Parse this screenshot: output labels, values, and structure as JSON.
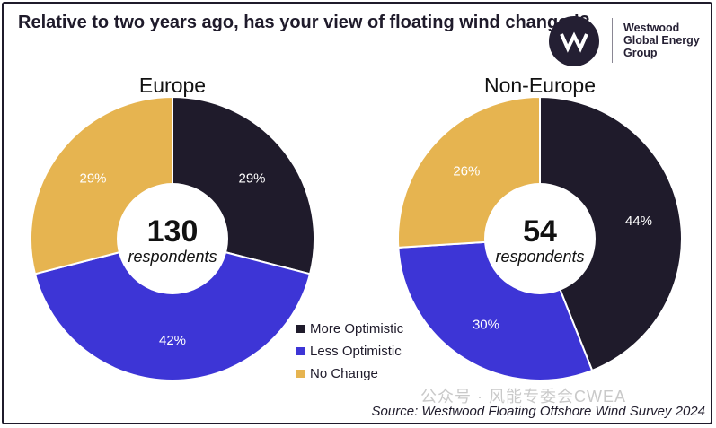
{
  "title": "Relative to two years ago, has your view of floating wind changed?",
  "logo": {
    "line1": "Westwood",
    "line2": "Global Energy",
    "line3": "Group"
  },
  "source": "Source: Westwood Floating Offshore Wind Survey 2024",
  "watermark": "公众号 · 风能专委会CWEA",
  "colors": {
    "more_optimistic": "#1f1b2b",
    "less_optimistic": "#3d35d6",
    "no_change": "#e6b450"
  },
  "chart_data": [
    {
      "type": "pie",
      "title": "Europe",
      "center_value": "130",
      "center_label": "respondents",
      "slices": [
        {
          "label": "More Optimistic",
          "value": 29,
          "display": "29%",
          "color": "#1f1b2b"
        },
        {
          "label": "Less Optimistic",
          "value": 42,
          "display": "42%",
          "color": "#3d35d6"
        },
        {
          "label": "No Change",
          "value": 29,
          "display": "29%",
          "color": "#e6b450"
        }
      ]
    },
    {
      "type": "pie",
      "title": "Non-Europe",
      "center_value": "54",
      "center_label": "respondents",
      "slices": [
        {
          "label": "More Optimistic",
          "value": 44,
          "display": "44%",
          "color": "#1f1b2b"
        },
        {
          "label": "Less Optimistic",
          "value": 30,
          "display": "30%",
          "color": "#3d35d6"
        },
        {
          "label": "No Change",
          "value": 26,
          "display": "26%",
          "color": "#e6b450"
        }
      ]
    }
  ],
  "legend": [
    {
      "label": "More Optimistic",
      "color": "#1f1b2b"
    },
    {
      "label": "Less Optimistic",
      "color": "#3d35d6"
    },
    {
      "label": "No Change",
      "color": "#e6b450"
    }
  ]
}
